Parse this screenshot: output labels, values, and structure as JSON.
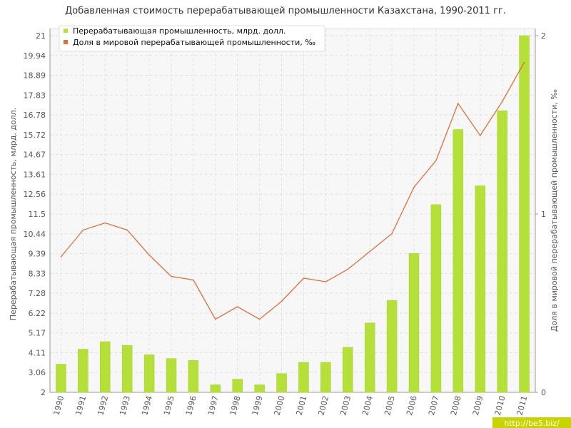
{
  "chart_data": {
    "type": "bar",
    "title": "Добавленная стоимость перерабатывающей промышленности Казахстана, 1990-2011 гг.",
    "ylabel_left": "Перерабатывающая промышленность, млрд. долл.",
    "ylabel_right": "Доля в мировой перерабатывающей промышленности, ‰",
    "categories": [
      "1990",
      "1991",
      "1992",
      "1993",
      "1994",
      "1995",
      "1996",
      "1997",
      "1998",
      "1999",
      "2000",
      "2001",
      "2002",
      "2003",
      "2004",
      "2005",
      "2006",
      "2007",
      "2008",
      "2009",
      "2010",
      "2011"
    ],
    "ylim_left": [
      2,
      21
    ],
    "yticks_left": [
      "2",
      "3.06",
      "4.11",
      "5.17",
      "6.22",
      "7.28",
      "8.33",
      "9.39",
      "10.44",
      "11.5",
      "12.56",
      "13.61",
      "14.67",
      "15.72",
      "16.78",
      "17.83",
      "18.89",
      "19.94",
      "21"
    ],
    "ylim_right": [
      0,
      2
    ],
    "yticks_right": [
      "0",
      "1",
      "2"
    ],
    "grid": true,
    "legend_position": "top-left",
    "series": [
      {
        "name": "Перерабатывающая промышленность, млрд. долл.",
        "type": "bar",
        "axis": "left",
        "color": "#b5e03a",
        "values": [
          3.5,
          4.3,
          4.7,
          4.5,
          4.0,
          3.8,
          3.7,
          2.4,
          2.7,
          2.4,
          3.0,
          3.6,
          3.6,
          4.4,
          5.7,
          6.9,
          9.4,
          12.0,
          16.0,
          13.0,
          17.0,
          21.0
        ]
      },
      {
        "name": "Доля в мировой перерабатывающей промышленности, ‰",
        "type": "line",
        "axis": "right",
        "color": "#e0703a",
        "values": [
          0.76,
          0.91,
          0.95,
          0.91,
          0.77,
          0.65,
          0.63,
          0.41,
          0.48,
          0.41,
          0.51,
          0.64,
          0.62,
          0.69,
          0.79,
          0.89,
          1.15,
          1.3,
          1.62,
          1.44,
          1.63,
          1.85
        ]
      }
    ]
  },
  "watermark": "http://be5.biz/"
}
